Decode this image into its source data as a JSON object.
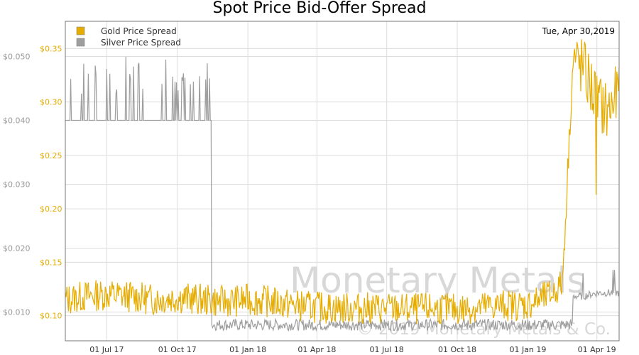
{
  "chart_data": {
    "type": "line",
    "title": "Spot Price Bid-Offer Spread",
    "date_label": "Tue, Apr 30,2019",
    "x_tick_labels": [
      "01 Jul 17",
      "01 Oct 17",
      "01 Jan 18",
      "01 Apr 18",
      "01 Jul 18",
      "01 Oct 18",
      "01 Jan 19",
      "01 Apr 19"
    ],
    "x_range": [
      "2017-05-08",
      "2019-04-30"
    ],
    "watermark": {
      "line1": "Monetary Metals",
      "line2": "© 2019 Monetary Metals & Co."
    },
    "axes": {
      "silver": {
        "side": "left-outer",
        "color": "#9a9a9a",
        "ticks": [
          "$0.010",
          "$0.020",
          "$0.030",
          "$0.040",
          "$0.050"
        ],
        "tick_values": [
          0.01,
          0.02,
          0.03,
          0.04,
          0.05
        ],
        "range": [
          0.0055,
          0.0555
        ]
      },
      "gold": {
        "side": "left-inner",
        "color": "#e6ac00",
        "ticks": [
          "$0.10",
          "$0.15",
          "$0.20",
          "$0.25",
          "$0.30",
          "$0.35"
        ],
        "tick_values": [
          0.1,
          0.15,
          0.2,
          0.25,
          0.3,
          0.35
        ],
        "range": [
          0.0765,
          0.3755
        ]
      }
    },
    "grid": true,
    "legend": {
      "position": "top-left"
    },
    "series": [
      {
        "name": "Gold Price Spread",
        "color": "#e6ac00",
        "axis": "gold",
        "x": [
          "2017-05-08",
          "2017-06-01",
          "2017-07-01",
          "2017-08-01",
          "2017-09-01",
          "2017-10-01",
          "2017-11-01",
          "2017-12-01",
          "2018-01-01",
          "2018-02-01",
          "2018-03-01",
          "2018-04-01",
          "2018-05-01",
          "2018-06-01",
          "2018-07-01",
          "2018-08-01",
          "2018-09-01",
          "2018-10-01",
          "2018-11-01",
          "2018-12-01",
          "2019-01-01",
          "2019-02-01",
          "2019-02-15",
          "2019-03-01",
          "2019-03-15",
          "2019-04-01",
          "2019-04-15",
          "2019-04-30"
        ],
        "values": [
          0.115,
          0.118,
          0.12,
          0.118,
          0.115,
          0.117,
          0.115,
          0.113,
          0.115,
          0.113,
          0.11,
          0.108,
          0.107,
          0.107,
          0.107,
          0.106,
          0.107,
          0.106,
          0.108,
          0.11,
          0.11,
          0.12,
          0.13,
          0.34,
          0.33,
          0.3,
          0.29,
          0.31
        ]
      },
      {
        "name": "Silver Price Spread",
        "color": "#9e9e9e",
        "axis": "silver",
        "x": [
          "2017-05-08",
          "2017-06-01",
          "2017-07-01",
          "2017-08-01",
          "2017-09-01",
          "2017-10-01",
          "2017-11-01",
          "2017-11-14",
          "2017-11-15",
          "2017-12-01",
          "2018-01-01",
          "2018-02-01",
          "2018-03-01",
          "2018-04-01",
          "2018-05-01",
          "2018-06-01",
          "2018-07-01",
          "2018-08-01",
          "2018-09-01",
          "2018-10-01",
          "2018-11-01",
          "2018-12-01",
          "2019-01-01",
          "2019-02-01",
          "2019-02-28",
          "2019-03-01",
          "2019-03-15",
          "2019-04-01",
          "2019-04-15",
          "2019-04-30"
        ],
        "values": [
          0.04,
          0.04,
          0.04,
          0.04,
          0.04,
          0.04,
          0.04,
          0.04,
          0.008,
          0.008,
          0.008,
          0.008,
          0.008,
          0.008,
          0.008,
          0.008,
          0.008,
          0.008,
          0.008,
          0.008,
          0.008,
          0.008,
          0.008,
          0.008,
          0.008,
          0.0125,
          0.0125,
          0.013,
          0.013,
          0.013
        ]
      }
    ]
  }
}
